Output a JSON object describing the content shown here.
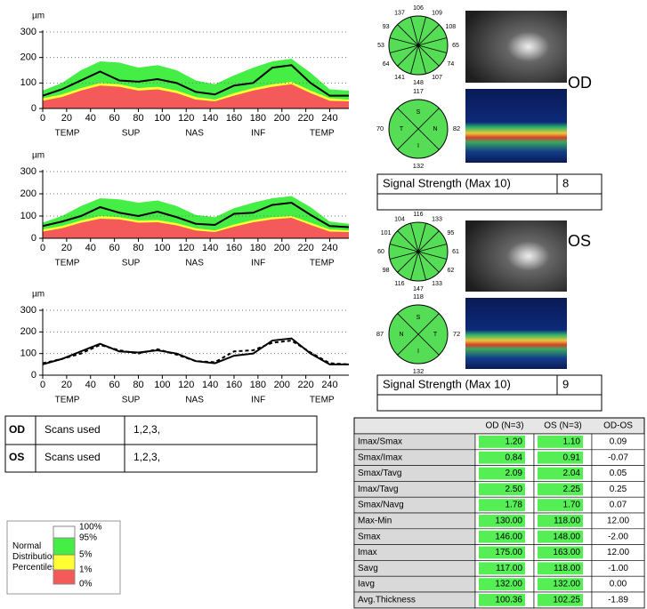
{
  "chart_data": [
    {
      "type": "line",
      "y_label": "µm",
      "x": [
        0,
        16,
        32,
        48,
        64,
        80,
        96,
        112,
        128,
        144,
        160,
        176,
        192,
        208,
        224,
        240,
        256
      ],
      "xlim": [
        0,
        256
      ],
      "xticks": [
        0,
        20,
        40,
        60,
        80,
        100,
        120,
        140,
        160,
        180,
        200,
        220,
        240
      ],
      "ylim": [
        0,
        300
      ],
      "yticks": [
        0,
        100,
        200,
        300
      ],
      "grid": true,
      "quadrant_labels": [
        "TEMP",
        "SUP",
        "NAS",
        "INF",
        "TEMP"
      ],
      "bands": [
        {
          "color": "#44ee44",
          "values": [
            70,
            100,
            150,
            185,
            180,
            160,
            170,
            150,
            110,
            95,
            130,
            160,
            185,
            195,
            140,
            75,
            70
          ]
        },
        {
          "color": "#ffff33",
          "values": [
            40,
            55,
            80,
            100,
            95,
            80,
            85,
            70,
            45,
            35,
            60,
            80,
            95,
            105,
            70,
            40,
            35
          ]
        },
        {
          "color": "#f45a5a",
          "values": [
            30,
            45,
            70,
            90,
            85,
            70,
            75,
            60,
            35,
            28,
            50,
            70,
            85,
            95,
            60,
            30,
            28
          ]
        }
      ],
      "series": [
        {
          "color": "#000000",
          "values": [
            50,
            75,
            110,
            145,
            110,
            105,
            115,
            100,
            65,
            55,
            90,
            100,
            160,
            170,
            100,
            50,
            50
          ]
        }
      ]
    },
    {
      "type": "line",
      "y_label": "µm",
      "x": [
        0,
        16,
        32,
        48,
        64,
        80,
        96,
        112,
        128,
        144,
        160,
        176,
        192,
        208,
        224,
        240,
        256
      ],
      "xlim": [
        0,
        256
      ],
      "xticks": [
        0,
        20,
        40,
        60,
        80,
        100,
        120,
        140,
        160,
        180,
        200,
        220,
        240
      ],
      "ylim": [
        0,
        300
      ],
      "yticks": [
        0,
        100,
        200,
        300
      ],
      "grid": true,
      "quadrant_labels": [
        "TEMP",
        "SUP",
        "NAS",
        "INF",
        "TEMP"
      ],
      "bands": [
        {
          "color": "#44ee44",
          "values": [
            70,
            100,
            145,
            180,
            175,
            160,
            170,
            145,
            105,
            95,
            135,
            160,
            180,
            190,
            140,
            75,
            65
          ]
        },
        {
          "color": "#ffff33",
          "values": [
            40,
            55,
            80,
            100,
            95,
            80,
            82,
            68,
            45,
            35,
            62,
            82,
            95,
            100,
            70,
            40,
            35
          ]
        },
        {
          "color": "#f45a5a",
          "values": [
            30,
            45,
            70,
            88,
            85,
            70,
            72,
            58,
            35,
            28,
            52,
            72,
            85,
            92,
            60,
            30,
            28
          ]
        }
      ],
      "series": [
        {
          "color": "#000000",
          "values": [
            55,
            75,
            100,
            140,
            115,
            100,
            120,
            95,
            65,
            60,
            110,
            115,
            150,
            160,
            105,
            55,
            50
          ]
        }
      ]
    },
    {
      "type": "line",
      "y_label": "µm",
      "x": [
        0,
        16,
        32,
        48,
        64,
        80,
        96,
        112,
        128,
        144,
        160,
        176,
        192,
        208,
        224,
        240,
        256
      ],
      "xlim": [
        0,
        256
      ],
      "xticks": [
        0,
        20,
        40,
        60,
        80,
        100,
        120,
        140,
        160,
        180,
        200,
        220,
        240
      ],
      "ylim": [
        0,
        300
      ],
      "yticks": [
        0,
        100,
        200,
        300
      ],
      "grid": true,
      "quadrant_labels": [
        "TEMP",
        "SUP",
        "NAS",
        "INF",
        "TEMP"
      ],
      "bands": [],
      "series": [
        {
          "name": "OD",
          "color": "#000000",
          "dashed": false,
          "values": [
            50,
            75,
            110,
            145,
            110,
            105,
            115,
            100,
            65,
            55,
            90,
            100,
            160,
            170,
            100,
            50,
            50
          ]
        },
        {
          "name": "OS",
          "color": "#000000",
          "dashed": true,
          "values": [
            55,
            75,
            100,
            140,
            115,
            100,
            120,
            95,
            65,
            60,
            110,
            115,
            150,
            160,
            105,
            55,
            50
          ]
        }
      ]
    }
  ],
  "scans_table": {
    "rows": [
      [
        "OD",
        "Scans used",
        "1,2,3,"
      ],
      [
        "OS",
        "Scans used",
        "1,2,3,"
      ]
    ]
  },
  "percentile_legend": {
    "title": "Normal Distribution Percentiles",
    "levels": [
      "100%",
      "95%",
      "5%",
      "1%",
      "0%"
    ],
    "colors": [
      "#ffffff",
      "#44ee44",
      "#ffff33",
      "#f45a5a"
    ]
  },
  "eyes": [
    {
      "label": "OD",
      "clock": [
        106,
        109,
        108,
        65,
        74,
        107,
        148,
        141,
        64,
        53,
        93,
        137
      ],
      "quadrants": {
        "letters": [
          "S",
          "N",
          "I",
          "T"
        ],
        "values": [
          117,
          82,
          132,
          70
        ]
      },
      "signal_strength": {
        "label": "Signal Strength (Max 10)",
        "value": "8"
      }
    },
    {
      "label": "OS",
      "clock": [
        116,
        133,
        95,
        61,
        62,
        133,
        147,
        116,
        98,
        60,
        101,
        104
      ],
      "quadrants": {
        "letters": [
          "S",
          "T",
          "I",
          "N"
        ],
        "values": [
          118,
          72,
          132,
          87
        ]
      },
      "signal_strength": {
        "label": "Signal Strength (Max 10)",
        "value": "9"
      }
    }
  ],
  "parameters_table": {
    "header": [
      "OD (N=3)",
      "OS (N=3)",
      "OD-OS"
    ],
    "rows": [
      [
        "Imax/Smax",
        "1.20",
        "1.10",
        "0.09"
      ],
      [
        "Smax/Imax",
        "0.84",
        "0.91",
        "-0.07"
      ],
      [
        "Smax/Tavg",
        "2.09",
        "2.04",
        "0.05"
      ],
      [
        "Imax/Tavg",
        "2.50",
        "2.25",
        "0.25"
      ],
      [
        "Smax/Navg",
        "1.78",
        "1.70",
        "0.07"
      ],
      [
        "Max-Min",
        "130.00",
        "118.00",
        "12.00"
      ],
      [
        "Smax",
        "146.00",
        "148.00",
        "-2.00"
      ],
      [
        "Imax",
        "175.00",
        "163.00",
        "12.00"
      ],
      [
        "Savg",
        "117.00",
        "118.00",
        "-1.00"
      ],
      [
        "Iavg",
        "132.00",
        "132.00",
        "0.00"
      ],
      [
        "Avg.Thickness",
        "100.36",
        "102.25",
        "-1.89"
      ]
    ]
  }
}
